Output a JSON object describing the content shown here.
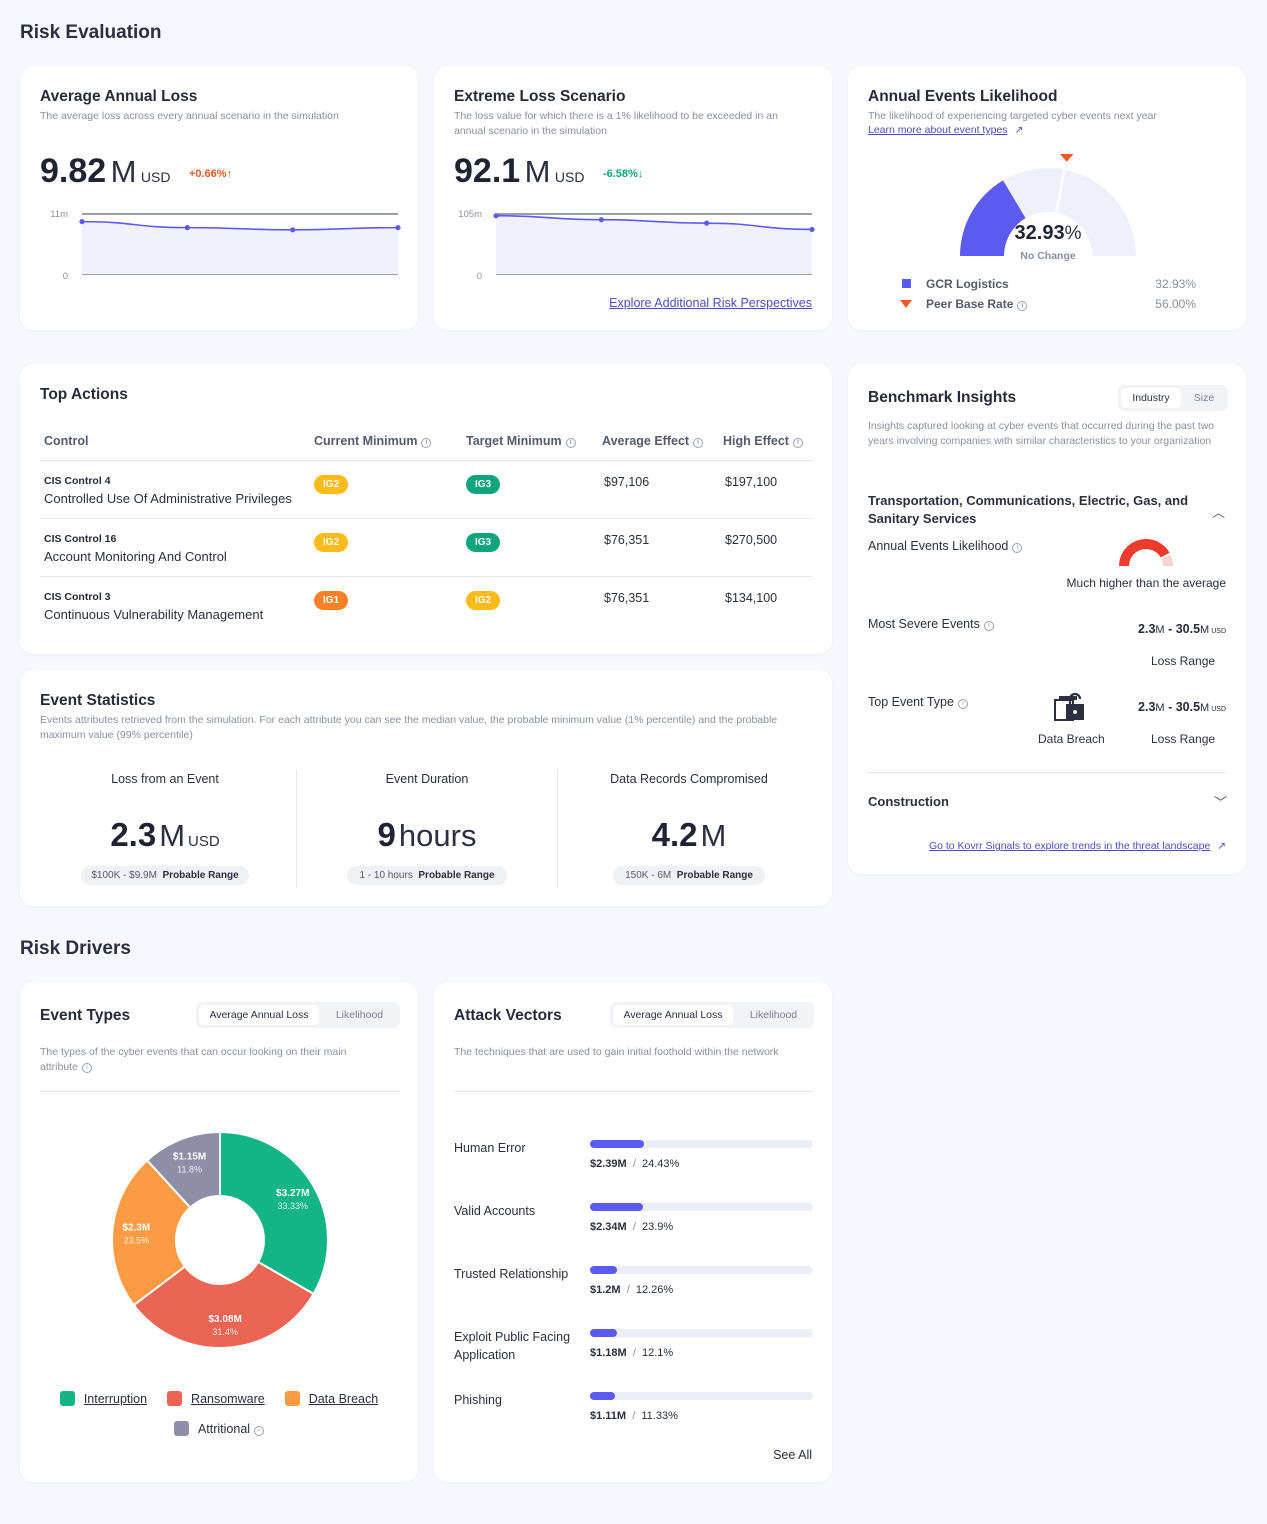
{
  "sections": {
    "risk_evaluation": "Risk Evaluation",
    "risk_drivers": "Risk Drivers"
  },
  "avg_loss": {
    "title": "Average Annual Loss",
    "subtitle": "The average loss across every annual scenario in the simulation",
    "value": "9.82",
    "unit": "M",
    "currency": "USD",
    "change": "+0.66%",
    "chart_data": {
      "type": "line",
      "y_ticks": [
        "11m",
        "0"
      ],
      "ylim": [
        0,
        11
      ],
      "values": [
        9.6,
        8.5,
        8.1,
        8.5
      ],
      "area": true,
      "grid": true
    }
  },
  "extreme_loss": {
    "title": "Extreme Loss Scenario",
    "subtitle": "The loss value for which there is a 1% likelihood to be exceeded in an annual scenario in the simulation",
    "value": "92.1",
    "unit": "M",
    "currency": "USD",
    "change": "-6.58%",
    "chart_data": {
      "type": "line",
      "y_ticks": [
        "105m",
        "0"
      ],
      "ylim": [
        0,
        105
      ],
      "values": [
        102,
        95,
        89,
        78
      ],
      "area": true,
      "grid": true
    },
    "link": "Explore Additional Risk Perspectives"
  },
  "likelihood": {
    "title": "Annual Events Likelihood",
    "subtitle": "The likelihood of experiencing targeted cyber events next year",
    "link": "Learn more about event types",
    "value": "32.93",
    "percent_sign": "%",
    "status": "No Change",
    "gauge_fraction": 0.3293,
    "marker_fraction": 0.56,
    "legend": [
      {
        "label": "GCR Logistics",
        "value": "32.93%",
        "color": "#5b5bf1"
      },
      {
        "label": "Peer Base Rate",
        "value": "56.00%",
        "color": "#f05a28"
      }
    ]
  },
  "top_actions": {
    "title": "Top Actions",
    "columns": [
      "Control",
      "Current Minimum",
      "Target Minimum",
      "Average Effect",
      "High Effect"
    ],
    "rows": [
      {
        "control": "CIS Control 4",
        "name": "Controlled Use Of Administrative Privileges",
        "current": "IG2",
        "target": "IG3",
        "avg": "$97,106",
        "high": "$197,100"
      },
      {
        "control": "CIS Control 16",
        "name": "Account Monitoring And Control",
        "current": "IG2",
        "target": "IG3",
        "avg": "$76,351",
        "high": "$270,500"
      },
      {
        "control": "CIS Control 3",
        "name": "Continuous Vulnerability Management",
        "current": "IG1",
        "target": "IG2",
        "avg": "$76,351",
        "high": "$134,100"
      }
    ]
  },
  "event_stats": {
    "title": "Event Statistics",
    "subtitle": "Events attributes retrieved from the simulation. For each attribute you can see the median value, the probable minimum value (1% percentile) and the probable maximum value (99% percentile)",
    "range_label": "Probable Range",
    "items": [
      {
        "label": "Loss from an Event",
        "value": "2.3",
        "unit": "M",
        "suffix": "USD",
        "range": "$100K - $9.9M"
      },
      {
        "label": "Event Duration",
        "value": "9",
        "unit": "hours",
        "suffix": "",
        "range": "1 - 10 hours"
      },
      {
        "label": "Data Records Compromised",
        "value": "4.2",
        "unit": "M",
        "suffix": "",
        "range": "150K - 6M"
      }
    ]
  },
  "benchmark": {
    "title": "Benchmark Insights",
    "tabs": [
      "Industry",
      "Size"
    ],
    "subtitle": "Insights captured looking at cyber events that occurred during the past two years involving companies with similar characteristics to your organization",
    "industry": "Transportation, Communications, Electric, Gas, and Sanitary Services",
    "likelihood_label": "Annual Events Likelihood",
    "likelihood_text": "Much higher than the average",
    "likelihood_fraction": 0.85,
    "severe_label": "Most Severe Events",
    "severe_low": "2.3",
    "severe_high": "30.5",
    "severe_unit": "M",
    "severe_currency": "USD",
    "loss_range": "Loss Range",
    "top_type_label": "Top Event Type",
    "top_type": "Data Breach",
    "construction": "Construction",
    "signals_link": "Go to Kovrr Signals to explore trends in the threat landscape"
  },
  "event_types": {
    "title": "Event Types",
    "tabs": [
      "Average Annual Loss",
      "Likelihood"
    ],
    "subtitle": "The types of the cyber events that can occur looking on  their main attribute",
    "chart_data": {
      "type": "pie",
      "slices": [
        {
          "name": "Interruption",
          "value": "$3.27M",
          "pct": 33.33,
          "pct_label": "33.33%",
          "color": "#13b485"
        },
        {
          "name": "Ransomware",
          "value": "$3.08M",
          "pct": 31.4,
          "pct_label": "31.4%",
          "color": "#ec6553"
        },
        {
          "name": "Data Breach",
          "value": "$2.3M",
          "pct": 23.5,
          "pct_label": "23.5%",
          "color": "#fd9b45"
        },
        {
          "name": "Attritional",
          "value": "$1.15M",
          "pct": 11.8,
          "pct_label": "11.8%",
          "color": "#8f8ea9"
        }
      ]
    }
  },
  "attack_vectors": {
    "title": "Attack Vectors",
    "tabs": [
      "Average Annual Loss",
      "Likelihood"
    ],
    "subtitle": "The techniques that are used to gain initial foothold within the network",
    "chart_data": {
      "type": "bar",
      "items": [
        {
          "label": "Human Error",
          "value": "$2.39M",
          "pct": "24.43%",
          "fraction": 0.2443
        },
        {
          "label": "Valid Accounts",
          "value": "$2.34M",
          "pct": "23.9%",
          "fraction": 0.239
        },
        {
          "label": "Trusted Relationship",
          "value": "$1.2M",
          "pct": "12.26%",
          "fraction": 0.1226
        },
        {
          "label": "Exploit Public Facing Application",
          "value": "$1.18M",
          "pct": "12.1%",
          "fraction": 0.121
        },
        {
          "label": "Phishing",
          "value": "$1.11M",
          "pct": "11.33%",
          "fraction": 0.1133
        }
      ]
    },
    "see_all": "See All"
  }
}
